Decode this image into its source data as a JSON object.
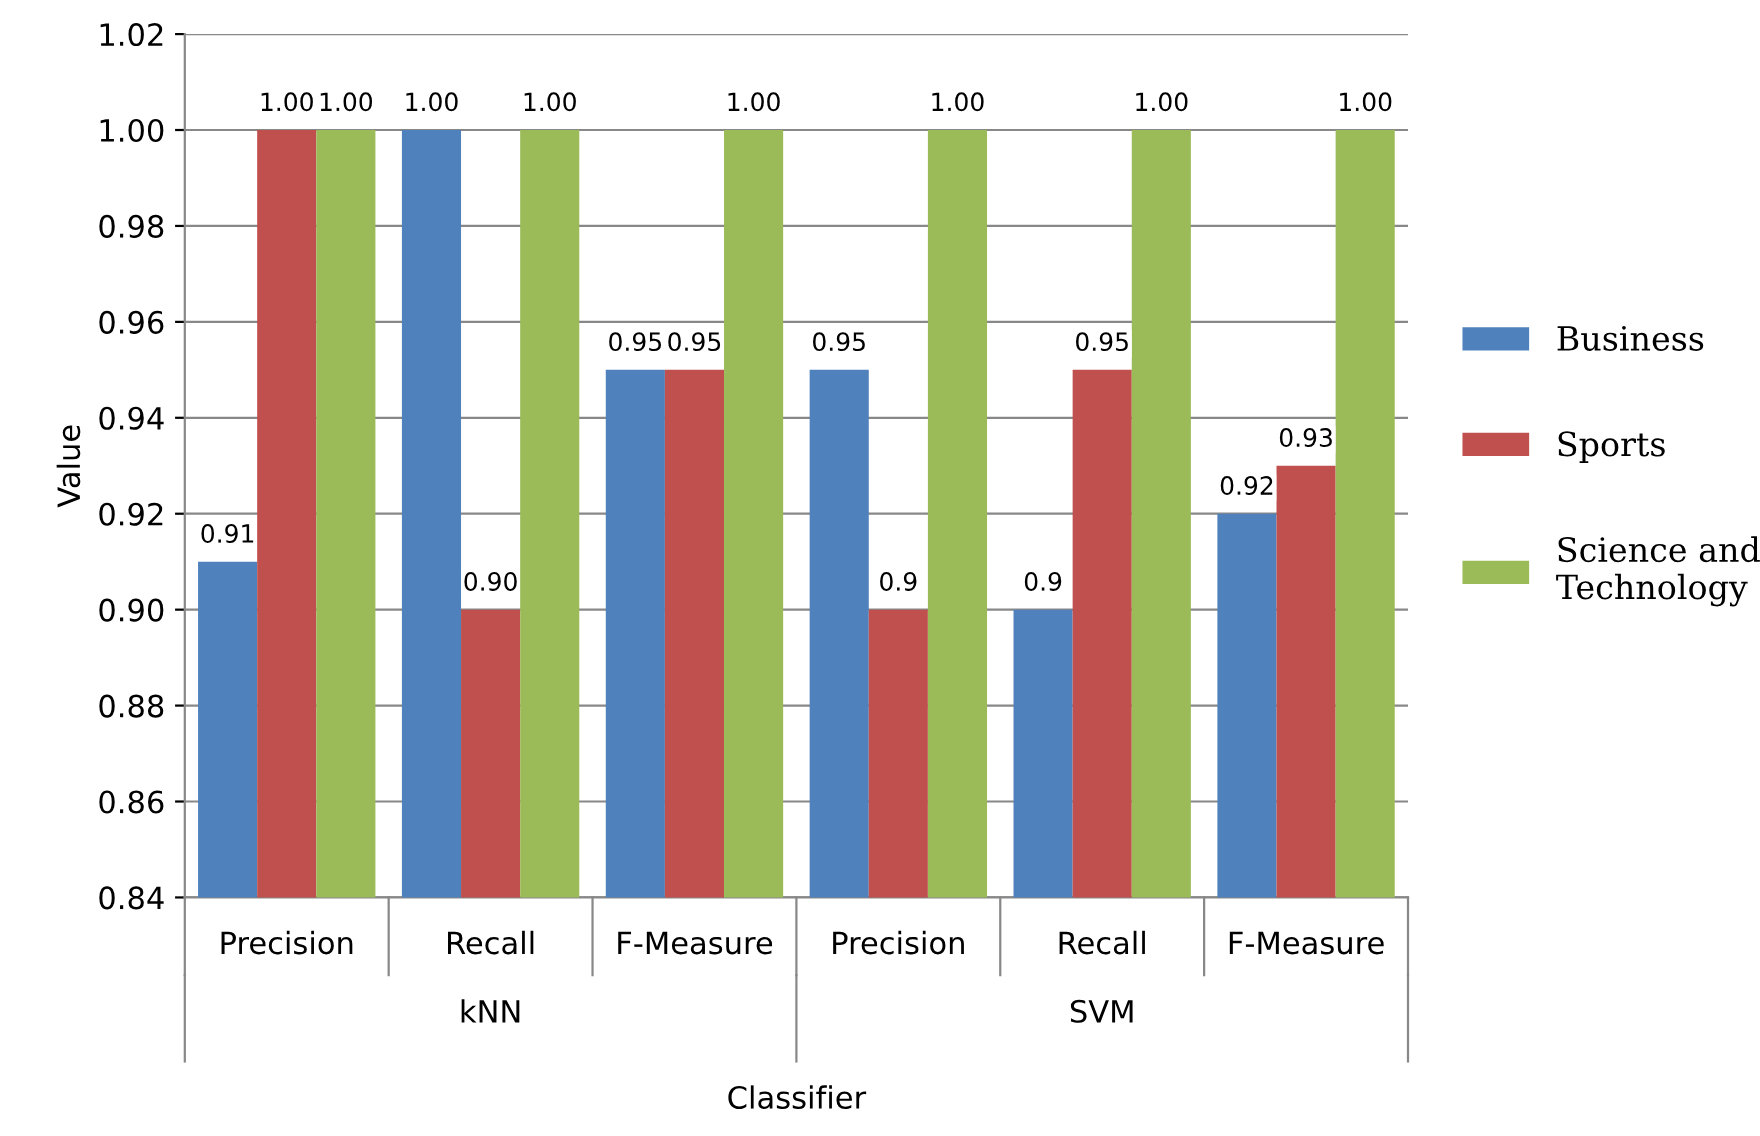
{
  "chart_data": {
    "type": "bar",
    "xlabel": "Classifier",
    "ylabel": "Value",
    "categories": [
      "Precision",
      "Recall",
      "F-Measure",
      "Precision",
      "Recall",
      "F-Measure"
    ],
    "series": [
      {
        "name": "Business",
        "color": "#4f81bd",
        "values": [
          0.91,
          1.0,
          0.95,
          0.95,
          0.9,
          0.92
        ],
        "value_labels": [
          "0.91",
          "1.00",
          "0.95",
          "0.95",
          "0.9",
          "0.92"
        ]
      },
      {
        "name": "Sports",
        "color": "#c0504d",
        "values": [
          1.0,
          0.9,
          0.95,
          0.9,
          0.95,
          0.93
        ],
        "value_labels": [
          "1.00",
          "0.90",
          "0.95",
          "0.9",
          "0.95",
          "0.93"
        ]
      },
      {
        "name": "Science and\nTechnology",
        "color": "#9bbb59",
        "values": [
          1.0,
          1.0,
          1.0,
          1.0,
          1.0,
          1.0
        ],
        "value_labels": [
          "1.00",
          "1.00",
          "1.00",
          "1.00",
          "1.00",
          "1.00"
        ]
      }
    ],
    "annotations": [
      "kNN",
      "SVM"
    ],
    "ylim": [
      0.84,
      1.02
    ],
    "yticks": [
      {
        "value": 0.84,
        "label": "0.84"
      },
      {
        "value": 0.86,
        "label": "0.86"
      },
      {
        "value": 0.88,
        "label": "0.88"
      },
      {
        "value": 0.9,
        "label": "0.90"
      },
      {
        "value": 0.92,
        "label": "0.92"
      },
      {
        "value": 0.94,
        "label": "0.94"
      },
      {
        "value": 0.96,
        "label": "0.96"
      },
      {
        "value": 0.98,
        "label": "0.98"
      },
      {
        "value": 1.0,
        "label": "1.00"
      },
      {
        "value": 1.02,
        "label": "1.02"
      }
    ],
    "grid": "y",
    "legend": "right"
  }
}
